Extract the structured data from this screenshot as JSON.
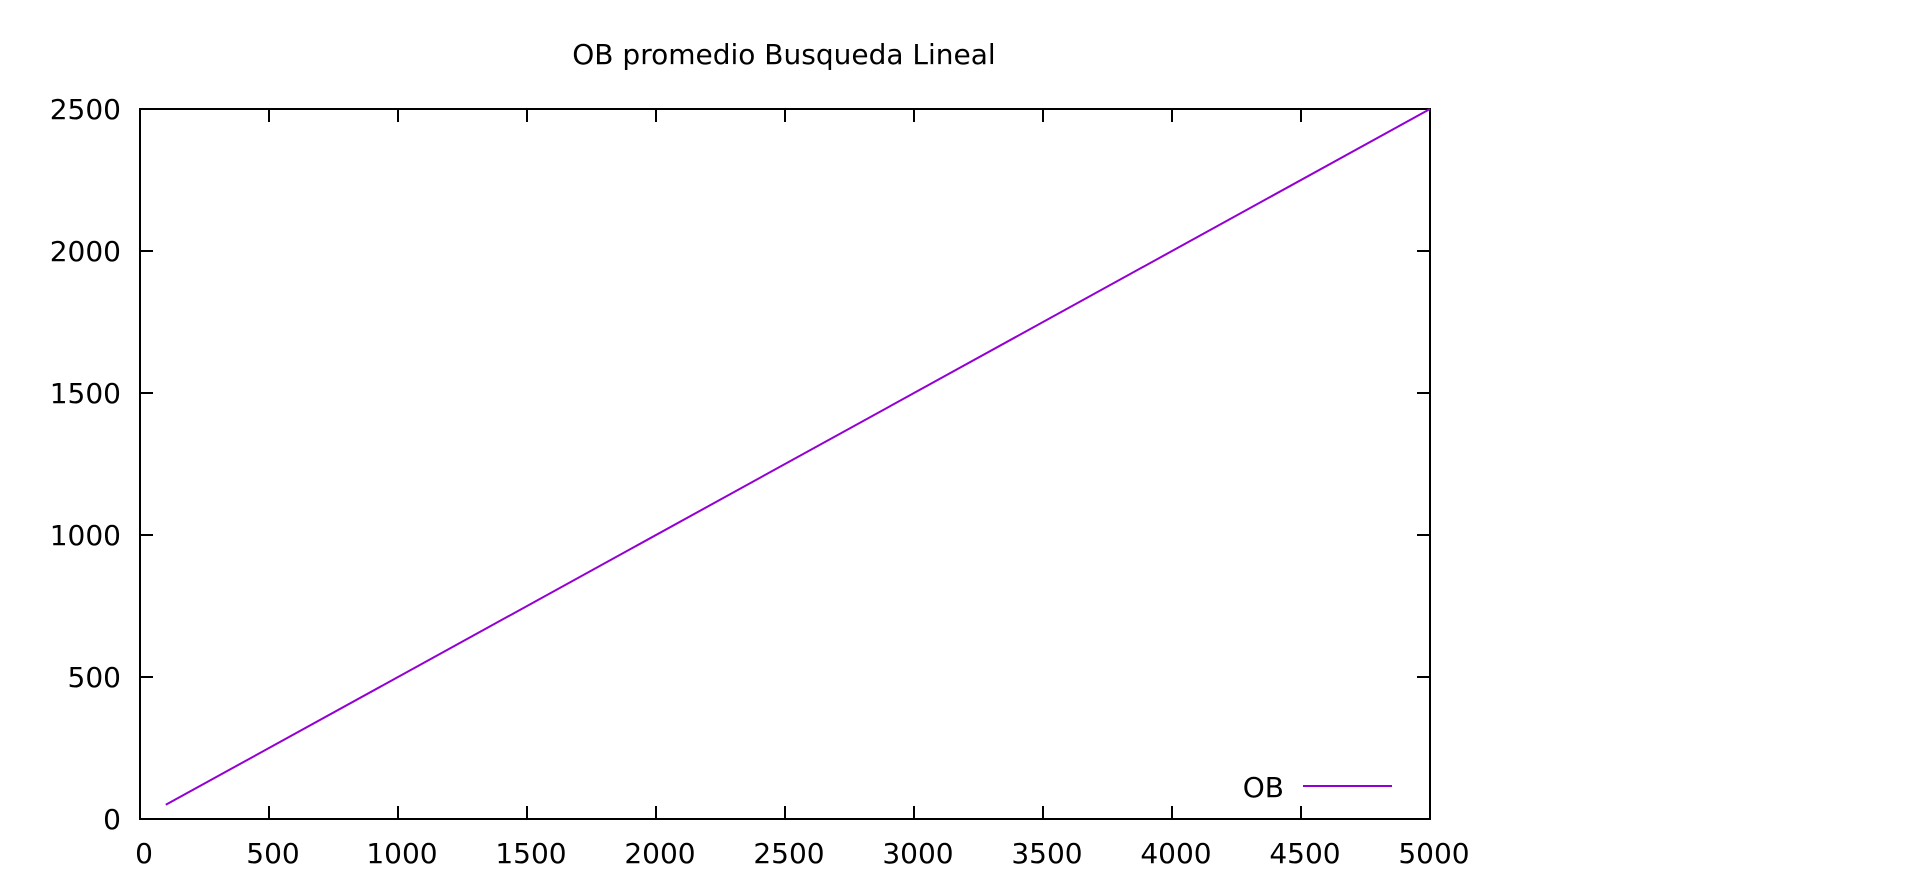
{
  "chart_data": {
    "type": "line",
    "title": "OB promedio Busqueda Lineal",
    "xlabel": "",
    "ylabel": "",
    "xlim": [
      0,
      5000
    ],
    "ylim": [
      0,
      2500
    ],
    "x_ticks": [
      0,
      500,
      1000,
      1500,
      2000,
      2500,
      3000,
      3500,
      4000,
      4500,
      5000
    ],
    "y_ticks": [
      0,
      500,
      1000,
      1500,
      2000,
      2500
    ],
    "x_tick_labels": [
      "0",
      "500",
      "1000",
      "1500",
      "2000",
      "2500",
      "3000",
      "3500",
      "4000",
      "4500",
      "5000"
    ],
    "y_tick_labels": [
      "0",
      "500",
      "1000",
      "1500",
      "2000",
      "2500"
    ],
    "grid": false,
    "legend_position": "bottom-right",
    "series": [
      {
        "name": "OB",
        "color": "#9400d3",
        "x": [
          100,
          5000
        ],
        "y": [
          50,
          2500
        ]
      }
    ]
  }
}
